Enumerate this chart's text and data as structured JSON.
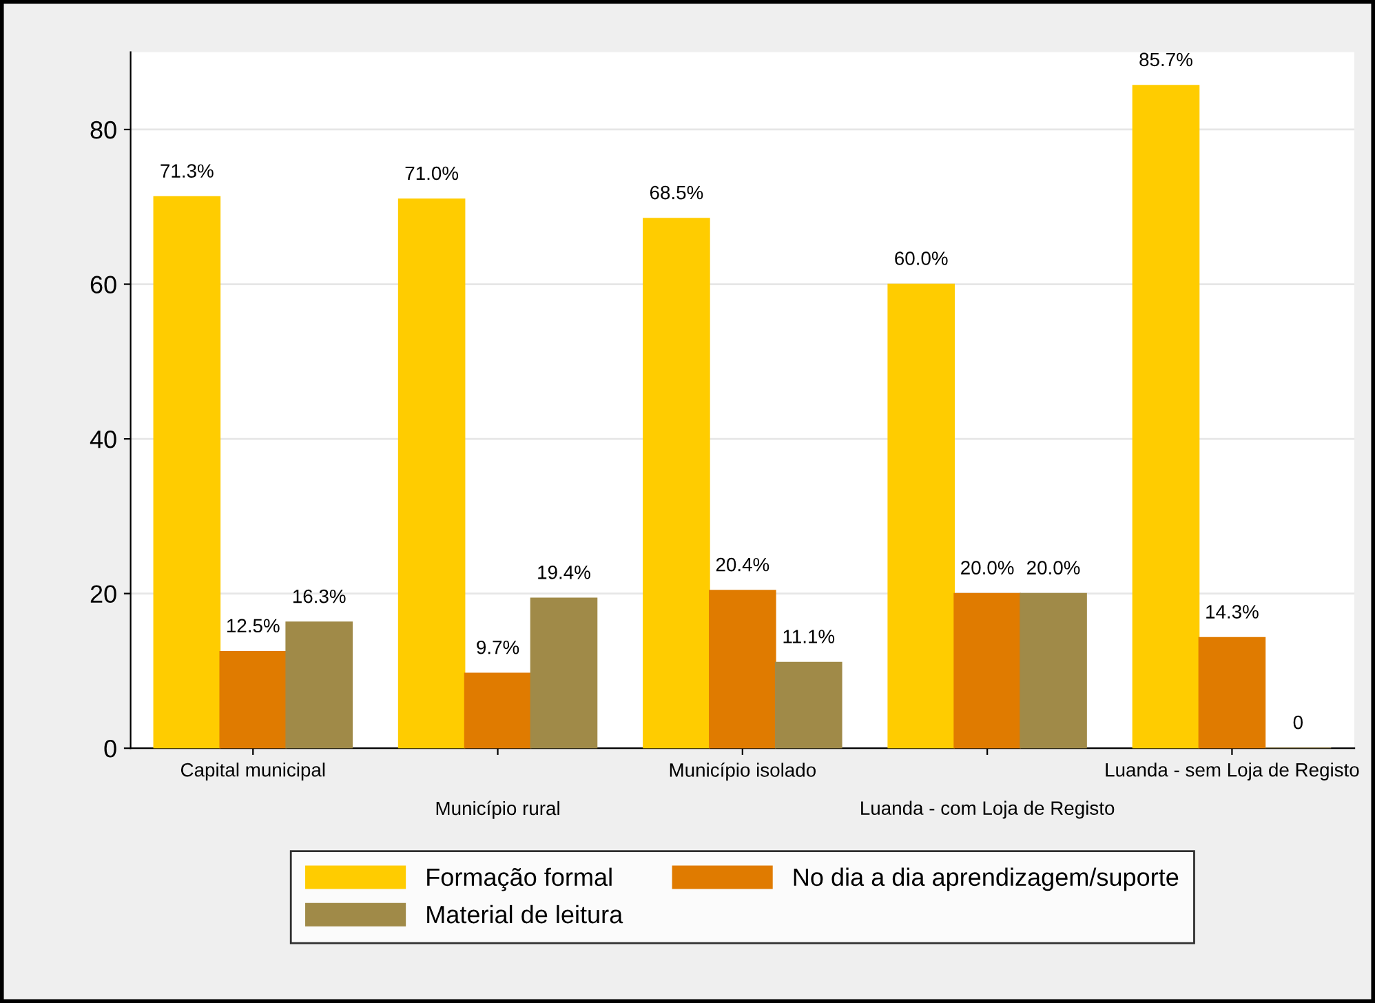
{
  "chart_data": {
    "type": "bar",
    "categories": [
      "Capital municipal",
      "Município rural",
      "Município isolado",
      "Luanda - com Loja de Registo",
      "Luanda - sem Loja de Registo"
    ],
    "series": [
      {
        "name": "Formação formal",
        "color": "#ffcc00",
        "values": [
          71.3,
          71.0,
          68.5,
          60.0,
          85.7
        ],
        "value_labels": [
          "71.3%",
          "71.0%",
          "68.5%",
          "60.0%",
          "85.7%"
        ]
      },
      {
        "name": "No dia a dia aprendizagem/suporte",
        "color": "#e07b00",
        "values": [
          12.5,
          9.7,
          20.4,
          20.0,
          14.3
        ],
        "value_labels": [
          "12.5%",
          "9.7%",
          "20.4%",
          "20.0%",
          "14.3%"
        ]
      },
      {
        "name": "Material de leitura",
        "color": "#a08a48",
        "values": [
          16.3,
          19.4,
          11.1,
          20.0,
          0
        ],
        "value_labels": [
          "16.3%",
          "19.4%",
          "11.1%",
          "20.0%",
          "0"
        ]
      }
    ],
    "ylim": [
      0,
      90
    ],
    "yticks": [
      0,
      20,
      40,
      60,
      80
    ],
    "grid": "y",
    "legend": "bottom"
  }
}
